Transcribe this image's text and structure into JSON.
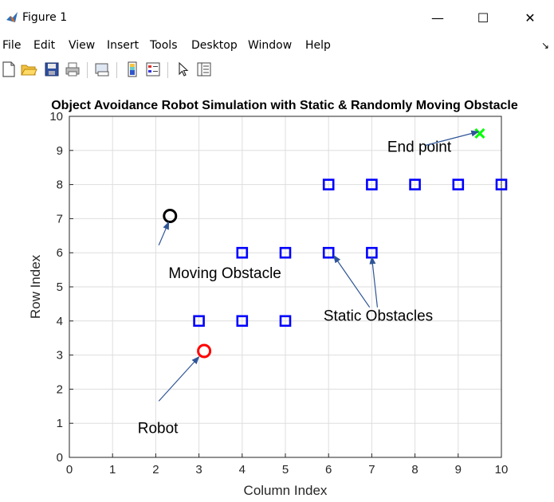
{
  "window": {
    "title": "Figure 1"
  },
  "window_controls": {
    "minimize": "—",
    "maximize": "☐",
    "close": "✕"
  },
  "menu": {
    "items": [
      "File",
      "Edit",
      "View",
      "Insert",
      "Tools",
      "Desktop",
      "Window",
      "Help"
    ],
    "arrow": "↘"
  },
  "toolbar": {
    "tools": [
      "new-figure-icon",
      "open-file-icon",
      "save-icon",
      "print-icon",
      "link-plot-icon",
      "insert-colorbar-icon",
      "insert-legend-icon",
      "edit-plot-pointer-icon",
      "property-inspector-icon"
    ]
  },
  "colors": {
    "static_obstacle": "#0000ff",
    "moving_obstacle": "#000000",
    "robot": "#ff0000",
    "end_point": "#00ff00",
    "annotation_arrow": "#2f5597"
  },
  "chart_data": {
    "type": "scatter",
    "title": "Object Avoidance Robot Simulation with Static & Randomly Moving Obstacle",
    "xlabel": "Column Index",
    "ylabel": "Row Index",
    "xlim": [
      0,
      10
    ],
    "ylim": [
      0,
      10
    ],
    "xticks": [
      "0",
      "1",
      "2",
      "3",
      "4",
      "5",
      "6",
      "7",
      "8",
      "9",
      "10"
    ],
    "yticks": [
      "0",
      "1",
      "2",
      "3",
      "4",
      "5",
      "6",
      "7",
      "8",
      "9",
      "10"
    ],
    "grid": true,
    "series": [
      {
        "marker": "square",
        "points": [
          [
            3,
            4
          ],
          [
            4,
            4
          ],
          [
            5,
            4
          ],
          [
            4,
            6
          ],
          [
            5,
            6
          ],
          [
            6,
            6
          ],
          [
            7,
            6
          ],
          [
            6,
            8
          ],
          [
            7,
            8
          ],
          [
            8,
            8
          ],
          [
            9,
            8
          ],
          [
            10,
            8
          ]
        ]
      },
      {
        "marker": "circle",
        "points": [
          [
            2.33,
            7.08
          ]
        ]
      },
      {
        "marker": "circle",
        "points": [
          [
            3.12,
            3.12
          ]
        ]
      },
      {
        "marker": "x",
        "points": [
          [
            9.5,
            9.5
          ]
        ]
      }
    ],
    "annotations": [
      {
        "text": "End point",
        "text_at": [
          8.1,
          9.1
        ],
        "arrows_to": [
          [
            9.47,
            9.55
          ]
        ]
      },
      {
        "text": "Moving Obstacle",
        "text_at": [
          3.6,
          5.4
        ],
        "arrows_to": [
          [
            2.3,
            6.9
          ]
        ]
      },
      {
        "text": "Static Obstacles",
        "text_at": [
          7.15,
          4.15
        ],
        "arrows_to": [
          [
            6.12,
            5.92
          ],
          [
            7.0,
            5.88
          ]
        ]
      },
      {
        "text": "Robot",
        "text_at": [
          2.05,
          0.85
        ],
        "arrows_to": [
          [
            3.0,
            2.95
          ]
        ]
      }
    ]
  }
}
